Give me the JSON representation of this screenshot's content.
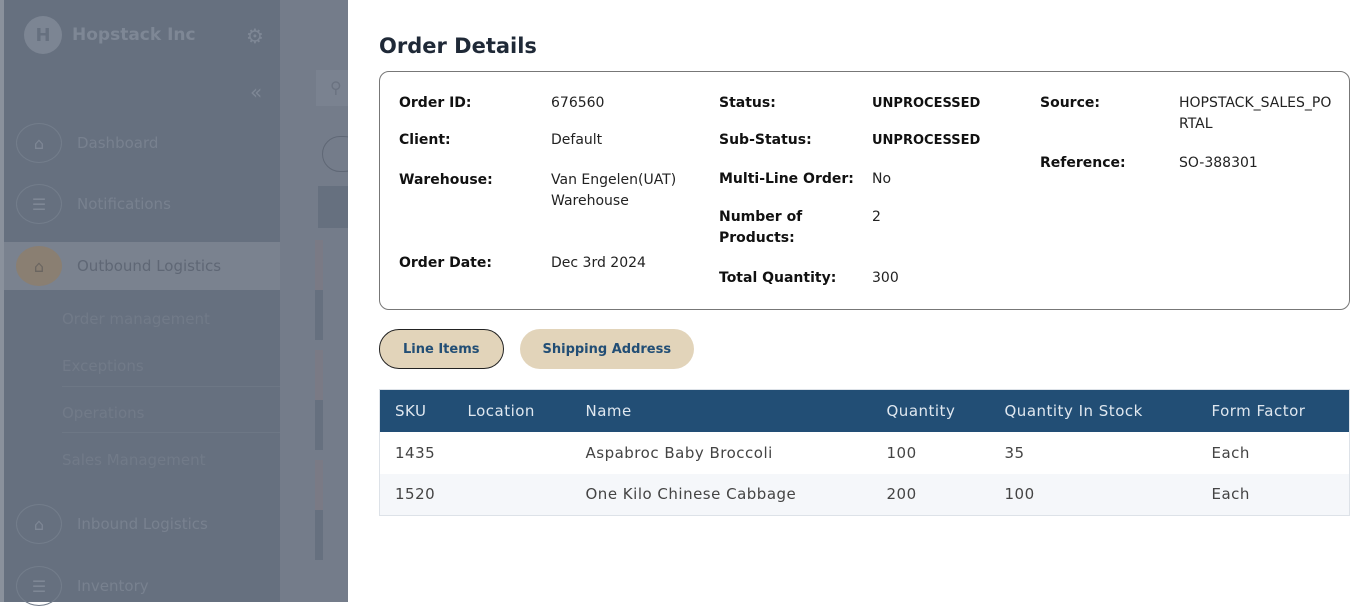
{
  "sidebar": {
    "brand": "Hopstack Inc",
    "logo_letter": "H",
    "items": [
      {
        "label": "Dashboard",
        "icon": "warehouse-icon"
      },
      {
        "label": "Notifications",
        "icon": "checklist-icon"
      },
      {
        "label": "Outbound Logistics",
        "icon": "warehouse-icon",
        "active": true
      },
      {
        "label": "Inbound Logistics",
        "icon": "warehouse-icon"
      },
      {
        "label": "Inventory",
        "icon": "checklist-icon"
      }
    ],
    "subitems": [
      "Order management",
      "Exceptions",
      "Operations",
      "Sales Management"
    ]
  },
  "modal": {
    "title": "Order Details",
    "fields": {
      "order_id": {
        "label": "Order ID:",
        "value": "676560"
      },
      "client": {
        "label": "Client:",
        "value": "Default"
      },
      "warehouse": {
        "label": "Warehouse:",
        "value": "Van Engelen(UAT) Warehouse"
      },
      "order_date": {
        "label": "Order Date:",
        "value": "Dec 3rd 2024"
      },
      "status": {
        "label": "Status:",
        "value": "UNPROCESSED"
      },
      "sub_status": {
        "label": "Sub-Status:",
        "value": "UNPROCESSED"
      },
      "multi_line": {
        "label": "Multi-Line Order:",
        "value": "No"
      },
      "num_products": {
        "label": "Number of Products:",
        "value": "2"
      },
      "total_qty": {
        "label": "Total Quantity:",
        "value": "300"
      },
      "source": {
        "label": "Source:",
        "value": "HOPSTACK_SALES_PORTAL"
      },
      "reference": {
        "label": "Reference:",
        "value": "SO-388301"
      }
    },
    "tabs": [
      "Line Items",
      "Shipping Address"
    ],
    "table": {
      "headers": [
        "SKU",
        "Location",
        "Name",
        "Quantity",
        "Quantity In Stock",
        "Form Factor"
      ],
      "rows": [
        [
          "1435",
          "",
          "Aspabroc Baby Broccoli",
          "100",
          "35",
          "Each"
        ],
        [
          "1520",
          "",
          "One Kilo Chinese Cabbage",
          "200",
          "100",
          "Each"
        ]
      ]
    }
  },
  "colors": {
    "header": "#224e75",
    "tab": "#e2d4ba",
    "overlay": "#66707f"
  }
}
